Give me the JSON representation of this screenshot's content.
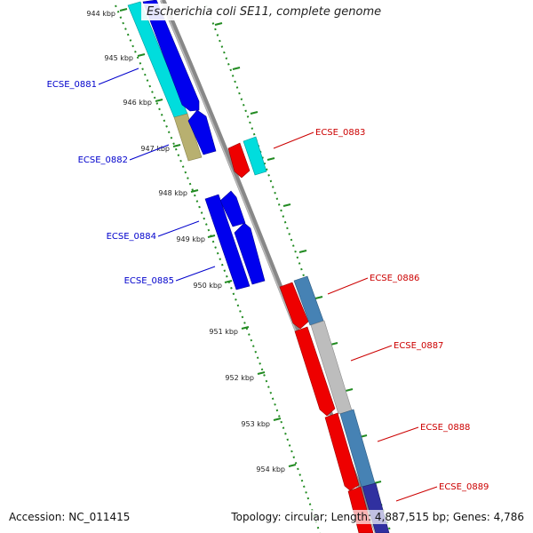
{
  "title": "Escherichia coli SE11, complete genome",
  "footer": {
    "accession": "Accession: NC_011415",
    "summary": "Topology: circular; Length: 4,887,515 bp; Genes: 4,786"
  },
  "colors": {
    "backbone": "#888888",
    "tick": "#228B22",
    "label_forward": "#0000cc",
    "label_reverse": "#cc0000",
    "blue": "#0000ee",
    "cyan": "#00dddd",
    "olive": "#b8b070",
    "red": "#ee0000",
    "steel": "#4682b4",
    "gray": "#bdbdbd",
    "darkblue": "#3030a0"
  },
  "kbp_marks": [
    {
      "label": "944 kbp",
      "kbp": 944
    },
    {
      "label": "945 kbp",
      "kbp": 945
    },
    {
      "label": "946 kbp",
      "kbp": 946
    },
    {
      "label": "947 kbp",
      "kbp": 947
    },
    {
      "label": "948 kbp",
      "kbp": 948
    },
    {
      "label": "949 kbp",
      "kbp": 949
    },
    {
      "label": "950 kbp",
      "kbp": 950
    },
    {
      "label": "951 kbp",
      "kbp": 951
    },
    {
      "label": "952 kbp",
      "kbp": 952
    },
    {
      "label": "953 kbp",
      "kbp": 953
    },
    {
      "label": "954 kbp",
      "kbp": 954
    }
  ],
  "gene_labels": [
    {
      "id": "ECSE_0881",
      "strand": "forward"
    },
    {
      "id": "ECSE_0882",
      "strand": "forward"
    },
    {
      "id": "ECSE_0883",
      "strand": "reverse"
    },
    {
      "id": "ECSE_0884",
      "strand": "forward"
    },
    {
      "id": "ECSE_0885",
      "strand": "forward"
    },
    {
      "id": "ECSE_0886",
      "strand": "reverse"
    },
    {
      "id": "ECSE_0887",
      "strand": "reverse"
    },
    {
      "id": "ECSE_0888",
      "strand": "reverse"
    },
    {
      "id": "ECSE_0889",
      "strand": "reverse"
    }
  ]
}
